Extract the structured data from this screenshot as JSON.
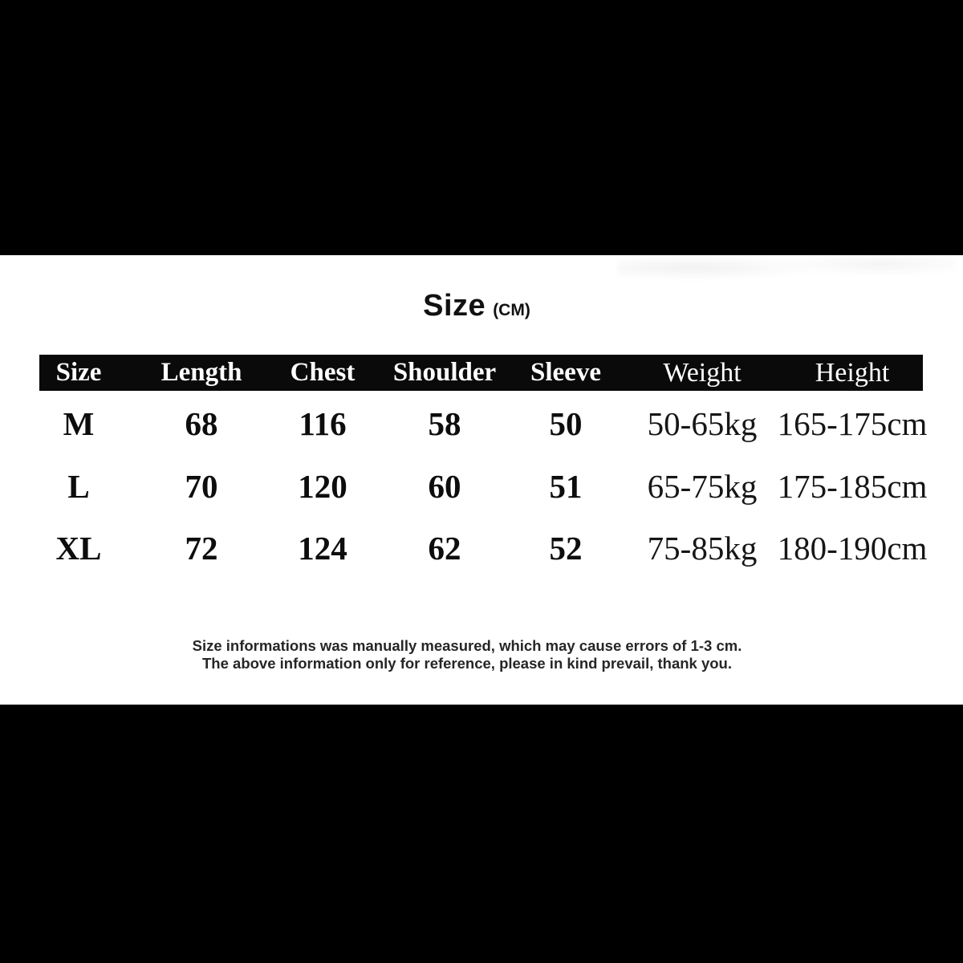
{
  "title": {
    "text": "Size",
    "unit": "(CM)"
  },
  "table": {
    "headers": [
      "Size",
      "Length",
      "Chest",
      "Shoulder",
      "Sleeve",
      "Weight",
      "Height"
    ],
    "rows": [
      [
        "M",
        "68",
        "116",
        "58",
        "50",
        "50-65kg",
        "165-175cm"
      ],
      [
        "L",
        "70",
        "120",
        "60",
        "51",
        "65-75kg",
        "175-185cm"
      ],
      [
        "XL",
        "72",
        "124",
        "62",
        "52",
        "75-85kg",
        "180-190cm"
      ]
    ]
  },
  "notes": {
    "line1": "Size informations was manually measured, which may cause errors of 1-3 cm.",
    "line2": "The above information only for reference, please in kind prevail, thank you."
  },
  "colors": {
    "letterbox": "#000000",
    "panel_background": "#ffffff",
    "header_row_background": "#0a0a0a",
    "header_row_text": "#ffffff",
    "body_text": "#0d0d0d",
    "note_text": "#262626"
  }
}
